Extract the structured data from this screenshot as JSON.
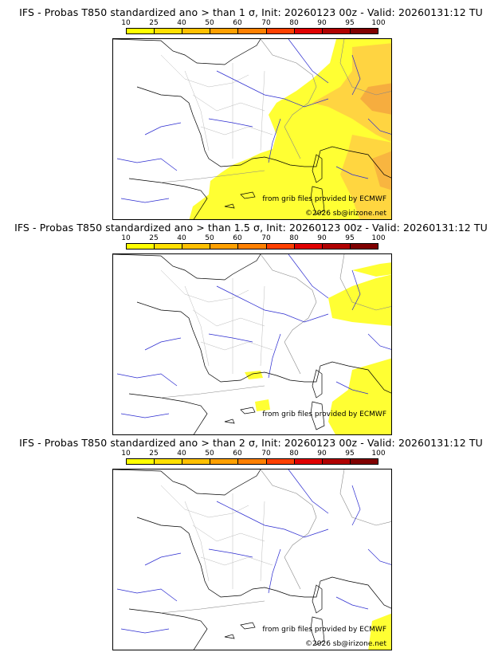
{
  "colorbar": {
    "labels": [
      "10",
      "25",
      "40",
      "50",
      "60",
      "70",
      "80",
      "90",
      "95",
      "100"
    ],
    "colors": [
      "#ffff00",
      "#ffe000",
      "#ffc000",
      "#ffa000",
      "#ff8000",
      "#ff4000",
      "#e00000",
      "#b00000",
      "#800000"
    ]
  },
  "colors": {
    "land_border": "#999999",
    "coast": "#000000",
    "rivers": "#2222cc",
    "prob_low": "#ffff00",
    "prob_mid": "#ffc83c",
    "prob_high": "#f0a040"
  },
  "panels": [
    {
      "title": "IFS - Probas T850  standardized ano > than 1 σ, Init: 20260123 00z - Valid: 20260131:12 TU",
      "source": "from grib files provided by ECMWF",
      "copyright": "©2026 sb@irizone.net"
    },
    {
      "title": "IFS - Probas T850  standardized ano > than 1.5 σ, Init: 20260123 00z - Valid: 20260131:12 TU",
      "source": "from grib files provided by ECMWF",
      "copyright": ""
    },
    {
      "title": "IFS - Probas T850  standardized ano > than 2 σ, Init: 20260123 00z - Valid: 20260131:12 TU",
      "source": "from grib files provided by ECMWF",
      "copyright": "©2026 sb@irizone.net"
    }
  ]
}
